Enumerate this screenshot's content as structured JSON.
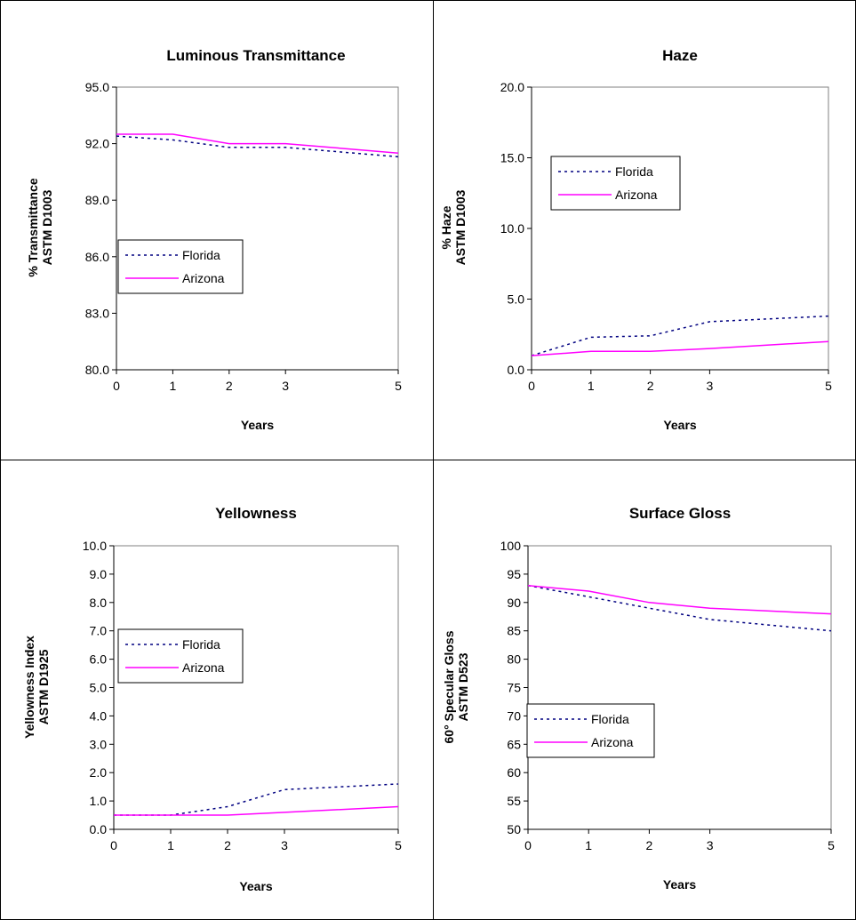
{
  "chart_data": [
    {
      "type": "line",
      "title": "Luminous Transmittance",
      "xlabel": "Years",
      "ylabel": [
        "% Transmittance",
        "ASTM D1003"
      ],
      "x": [
        0,
        1,
        2,
        3,
        5
      ],
      "xticks": [
        "0",
        "1",
        "2",
        "3",
        "5"
      ],
      "ylim": [
        80,
        95
      ],
      "yticks": [
        "80.0",
        "83.0",
        "86.0",
        "89.0",
        "92.0",
        "95.0"
      ],
      "series": [
        {
          "name": "Florida",
          "values": [
            92.4,
            92.2,
            91.8,
            91.8,
            91.3
          ]
        },
        {
          "name": "Arizona",
          "values": [
            92.5,
            92.5,
            92.0,
            92.0,
            91.5
          ]
        }
      ],
      "legend": "left-middle"
    },
    {
      "type": "line",
      "title": "Haze",
      "xlabel": "Years",
      "ylabel": [
        "% Haze",
        "ASTM D1003"
      ],
      "x": [
        0,
        1,
        2,
        3,
        5
      ],
      "xticks": [
        "0",
        "1",
        "2",
        "3",
        "5"
      ],
      "ylim": [
        0,
        20
      ],
      "yticks": [
        "0.0",
        "5.0",
        "10.0",
        "15.0",
        "20.0"
      ],
      "series": [
        {
          "name": "Florida",
          "values": [
            1.0,
            2.3,
            2.4,
            3.4,
            3.8
          ]
        },
        {
          "name": "Arizona",
          "values": [
            1.0,
            1.3,
            1.3,
            1.5,
            2.0
          ]
        }
      ],
      "legend": "top-left"
    },
    {
      "type": "line",
      "title": "Yellowness",
      "xlabel": "Years",
      "ylabel": [
        "Yellowness Index",
        "ASTM D1925"
      ],
      "x": [
        0,
        1,
        2,
        3,
        5
      ],
      "xticks": [
        "0",
        "1",
        "2",
        "3",
        "5"
      ],
      "ylim": [
        0,
        10
      ],
      "yticks": [
        "0.0",
        "1.0",
        "2.0",
        "3.0",
        "4.0",
        "5.0",
        "6.0",
        "7.0",
        "8.0",
        "9.0",
        "10.0"
      ],
      "series": [
        {
          "name": "Florida",
          "values": [
            0.5,
            0.5,
            0.8,
            1.4,
            1.6
          ]
        },
        {
          "name": "Arizona",
          "values": [
            0.5,
            0.5,
            0.5,
            0.6,
            0.8
          ]
        }
      ],
      "legend": "left-middle"
    },
    {
      "type": "line",
      "title": "Surface Gloss",
      "xlabel": "Years",
      "ylabel": [
        "60° Specular Gloss",
        "ASTM D523"
      ],
      "x": [
        0,
        1,
        2,
        3,
        5
      ],
      "xticks": [
        "0",
        "1",
        "2",
        "3",
        "5"
      ],
      "ylim": [
        50,
        100
      ],
      "yticks": [
        "50",
        "55",
        "60",
        "65",
        "70",
        "75",
        "80",
        "85",
        "90",
        "95",
        "100"
      ],
      "series": [
        {
          "name": "Florida",
          "values": [
            93,
            91,
            89,
            87,
            85
          ]
        },
        {
          "name": "Arizona",
          "values": [
            93,
            92,
            90,
            89,
            88
          ]
        }
      ],
      "legend": "left-lower"
    }
  ],
  "colors": {
    "Florida": "#000080",
    "Arizona": "#ff00ff",
    "frame": "#000000"
  }
}
